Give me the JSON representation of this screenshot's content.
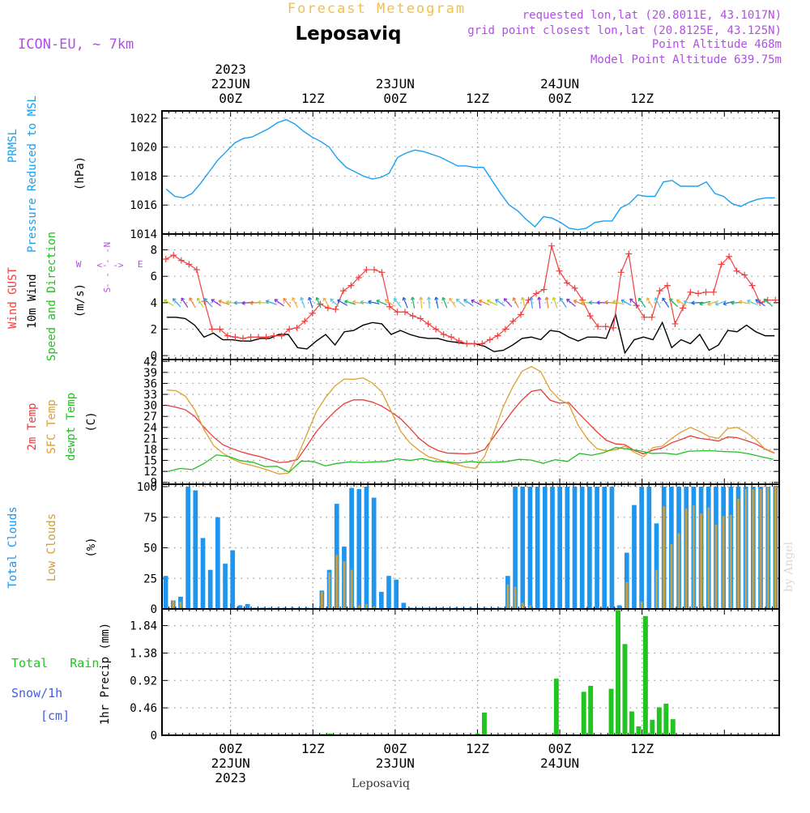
{
  "colors": {
    "pressure": "#1aa0f0",
    "gust": "#f04040",
    "wind": "#000000",
    "t2m": "#e83c3c",
    "sfc": "#dca030",
    "dew": "#22c022",
    "tcc": "#1e96f0",
    "lcc": "#c8a040",
    "rain": "#22c422",
    "snow": "#4060e0",
    "purple": "#b050e0",
    "orange": "#f0c050",
    "grid": "#999999"
  },
  "header": {
    "forecast_meteogram": "Forecast Meteogram",
    "model": "ICON-EU, ~ 7km",
    "location": "Leposaviq",
    "requested": "requested lon,lat (20.8011E, 43.1017N)",
    "gridpoint": "grid point closest lon,lat (20.8125E, 43.125N)",
    "point_alt": "Point Altitude 468m",
    "model_alt": "Model Point Altitude 639.75m"
  },
  "footer": {
    "location": "Leposaviq",
    "credit": "by Angel"
  },
  "chart_data": [
    {
      "id": "time_axis",
      "type": "axis",
      "x_hours_from_21jun_14z": [
        0,
        90
      ],
      "top_labels": [
        {
          "t": 10,
          "lines": [
            "2023",
            "22JUN",
            "00Z"
          ]
        },
        {
          "t": 22,
          "lines": [
            "12Z"
          ]
        },
        {
          "t": 34,
          "lines": [
            "23JUN",
            "00Z"
          ]
        },
        {
          "t": 46,
          "lines": [
            "12Z"
          ]
        },
        {
          "t": 58,
          "lines": [
            "24JUN",
            "00Z"
          ]
        },
        {
          "t": 70,
          "lines": [
            "12Z"
          ]
        }
      ],
      "bottom_labels": [
        {
          "t": 10,
          "lines": [
            "00Z",
            "22JUN",
            "2023"
          ]
        },
        {
          "t": 22,
          "lines": [
            "12Z"
          ]
        },
        {
          "t": 34,
          "lines": [
            "00Z",
            "23JUN"
          ]
        },
        {
          "t": 46,
          "lines": [
            "12Z"
          ]
        },
        {
          "t": 58,
          "lines": [
            "00Z",
            "24JUN"
          ]
        },
        {
          "t": 70,
          "lines": [
            "12Z"
          ]
        }
      ]
    },
    {
      "id": "pressure",
      "type": "line",
      "ylim": [
        1014,
        1022.5
      ],
      "yticks": [
        1014,
        1016,
        1018,
        1020,
        1022
      ],
      "ylabel_lines": [
        "PRMSL",
        "Pressure Reduced to MSL"
      ],
      "unit": "(hPa)",
      "series": [
        {
          "name": "PRMSL",
          "color": "pressure",
          "values": [
            1017.1,
            1016.6,
            1016.5,
            1016.8,
            1017.5,
            1018.3,
            1019.1,
            1019.7,
            1020.3,
            1020.6,
            1020.7,
            1021.0,
            1021.3,
            1021.7,
            1021.9,
            1021.6,
            1021.1,
            1020.7,
            1020.4,
            1020.0,
            1019.2,
            1018.6,
            1018.3,
            1018.0,
            1017.8,
            1017.9,
            1018.2,
            1019.3,
            1019.6,
            1019.8,
            1019.7,
            1019.5,
            1019.3,
            1019.0,
            1018.7,
            1018.7,
            1018.6,
            1018.6,
            1017.7,
            1016.8,
            1016.0,
            1015.6,
            1015.0,
            1014.5,
            1015.2,
            1015.1,
            1014.8,
            1014.4,
            1014.3,
            1014.4,
            1014.8,
            1014.9,
            1014.9,
            1015.8,
            1016.1,
            1016.7,
            1016.6,
            1016.6,
            1017.6,
            1017.7,
            1017.3,
            1017.3,
            1017.3,
            1017.6,
            1016.8,
            1016.6,
            1016.1,
            1015.9,
            1016.2,
            1016.4,
            1016.5,
            1016.5
          ]
        }
      ]
    },
    {
      "id": "wind",
      "type": "line",
      "ylim": [
        -0.3,
        9.2
      ],
      "yticks": [
        0,
        2,
        4,
        6,
        8
      ],
      "ylabel_lines": [
        "Wind GUST",
        "10m Wind",
        "Speed and Direction"
      ],
      "unit": "(m/s)",
      "compass": {
        "n": "N",
        "s": "S",
        "w": "W",
        "e": "E"
      },
      "arrow_level": 4,
      "series": [
        {
          "name": "Wind GUST",
          "color": "gust",
          "marker": "+",
          "values": [
            7.3,
            7.6,
            7.2,
            6.9,
            6.5,
            4.1,
            2.0,
            2.0,
            1.5,
            1.4,
            1.3,
            1.4,
            1.4,
            1.4,
            1.5,
            1.5,
            2.0,
            2.1,
            2.6,
            3.2,
            3.9,
            3.6,
            3.5,
            4.9,
            5.3,
            5.9,
            6.5,
            6.5,
            6.3,
            3.7,
            3.3,
            3.3,
            3.0,
            2.8,
            2.4,
            2.0,
            1.6,
            1.4,
            1.1,
            0.9,
            0.9,
            0.9,
            1.2,
            1.5,
            2.0,
            2.6,
            3.1,
            4.2,
            4.7,
            5.0,
            8.3,
            6.4,
            5.5,
            5.1,
            4.2,
            3.0,
            2.2,
            2.2,
            2.1,
            6.3,
            7.7,
            3.8,
            2.9,
            2.9,
            4.9,
            5.3,
            2.4,
            3.6,
            4.8,
            4.7,
            4.8,
            4.8,
            6.9,
            7.5,
            6.4,
            6.1,
            5.3,
            4.0,
            4.2,
            4.2
          ]
        },
        {
          "name": "10m Wind",
          "color": "wind",
          "values": [
            2.9,
            2.9,
            2.8,
            2.3,
            1.4,
            1.7,
            1.2,
            1.2,
            1.1,
            1.1,
            1.3,
            1.3,
            1.6,
            1.6,
            0.6,
            0.5,
            1.1,
            1.6,
            0.8,
            1.8,
            1.9,
            2.3,
            2.5,
            2.4,
            1.6,
            1.9,
            1.6,
            1.4,
            1.3,
            1.3,
            1.1,
            1.0,
            0.9,
            0.9,
            0.7,
            0.3,
            0.4,
            0.8,
            1.3,
            1.4,
            1.2,
            1.9,
            1.8,
            1.4,
            1.1,
            1.4,
            1.4,
            1.3,
            3.1,
            0.2,
            1.2,
            1.4,
            1.2,
            2.5,
            0.6,
            1.2,
            0.9,
            1.6,
            0.4,
            0.8,
            1.9,
            1.8,
            2.3,
            1.8,
            1.5,
            1.5
          ]
        }
      ]
    },
    {
      "id": "temperature",
      "type": "line",
      "ylim": [
        8.5,
        42.5
      ],
      "yticks": [
        9,
        12,
        15,
        18,
        21,
        24,
        27,
        30,
        33,
        36,
        39,
        42
      ],
      "ylabel_lines": [
        "2m Temp",
        "SFC Temp",
        "dewpt Temp"
      ],
      "unit": "(C)",
      "series": [
        {
          "name": "2m Temp",
          "color": "t2m",
          "values": [
            30.0,
            29.5,
            28.8,
            27.0,
            24.0,
            21.4,
            19.3,
            18.2,
            17.3,
            16.6,
            16.0,
            15.2,
            14.4,
            14.6,
            15.3,
            19.0,
            22.8,
            25.8,
            28.4,
            30.5,
            31.5,
            31.5,
            30.9,
            29.8,
            28.2,
            26.4,
            23.8,
            21.0,
            19.0,
            17.7,
            17.0,
            16.9,
            16.8,
            17.0,
            18.0,
            21.5,
            25.0,
            28.5,
            31.5,
            33.8,
            34.3,
            31.4,
            30.6,
            30.8,
            28.0,
            25.4,
            22.8,
            20.5,
            19.5,
            19.3,
            17.7,
            16.8,
            17.8,
            18.4,
            19.8,
            20.7,
            21.7,
            21.0,
            20.7,
            20.3,
            21.4,
            21.2,
            20.4,
            19.5,
            18.1,
            17.0
          ]
        },
        {
          "name": "SFC Temp",
          "color": "sfc",
          "values": [
            34.2,
            34.0,
            32.5,
            28.8,
            23.4,
            19.1,
            17.0,
            15.4,
            14.3,
            13.7,
            13.0,
            12.2,
            11.3,
            11.5,
            16.2,
            22.2,
            28.3,
            32.2,
            35.3,
            37.2,
            37.1,
            37.5,
            36.1,
            33.7,
            28.4,
            23.0,
            19.8,
            17.7,
            16.0,
            15.3,
            14.4,
            13.9,
            13.2,
            12.8,
            16.1,
            22.8,
            29.7,
            35.0,
            39.3,
            40.6,
            39.2,
            34.3,
            31.6,
            30.3,
            24.6,
            20.8,
            18.2,
            17.6,
            17.9,
            18.9,
            17.2,
            16.0,
            18.5,
            18.9,
            21.0,
            22.7,
            24.0,
            22.9,
            21.5,
            21.0,
            23.7,
            24.0,
            22.6,
            20.7,
            18.0,
            16.9
          ]
        },
        {
          "name": "dewpt Temp",
          "color": "dew",
          "values": [
            12.0,
            12.8,
            12.5,
            14.2,
            16.5,
            16.1,
            14.9,
            14.5,
            13.3,
            13.4,
            11.8,
            14.8,
            14.7,
            13.5,
            14.2,
            14.6,
            14.4,
            14.6,
            14.7,
            15.4,
            15.0,
            15.5,
            14.7,
            14.6,
            14.3,
            14.7,
            14.4,
            14.5,
            14.7,
            15.3,
            15.1,
            14.2,
            15.2,
            14.7,
            16.9,
            16.4,
            17.1,
            18.5,
            18.1,
            17.6,
            16.9,
            17.0,
            16.6,
            17.5,
            17.6,
            17.6,
            17.4,
            17.3,
            16.8,
            16.0,
            15.3
          ]
        }
      ]
    },
    {
      "id": "clouds",
      "type": "bar",
      "ylim": [
        0,
        102
      ],
      "yticks": [
        0,
        25,
        50,
        75,
        100
      ],
      "ylabel_lines": [
        "Total Clouds",
        "Low Clouds"
      ],
      "unit": "(%)",
      "t0": 0,
      "series": [
        {
          "name": "Total Clouds",
          "color": "tcc",
          "values": [
            27,
            7,
            10,
            100,
            97,
            58,
            32,
            75,
            37,
            48,
            3,
            4,
            1,
            1,
            1,
            1,
            1,
            1,
            1,
            1,
            1,
            15,
            32,
            86,
            51,
            99,
            98,
            100,
            91,
            14,
            27,
            24,
            5,
            1,
            1,
            1,
            1,
            1,
            1,
            1,
            1,
            1,
            1,
            1,
            1,
            1,
            27,
            100,
            100,
            100,
            100,
            100,
            100,
            100,
            100,
            100,
            100,
            100,
            100,
            100,
            100,
            3,
            46,
            85,
            100,
            100,
            70,
            100,
            100,
            100,
            100,
            100,
            100,
            100,
            100,
            100,
            100,
            100,
            100,
            100,
            100,
            100,
            100
          ]
        },
        {
          "name": "Low Clouds",
          "color": "lcc",
          "values": [
            0,
            7,
            6,
            0,
            0,
            0,
            0,
            0,
            0,
            0,
            0,
            0,
            0,
            0,
            0,
            0,
            0,
            0,
            0,
            0,
            0,
            14,
            30,
            44,
            39,
            32,
            3,
            4,
            2,
            0,
            0,
            0,
            0,
            0,
            0,
            0,
            0,
            0,
            0,
            0,
            0,
            0,
            0,
            0,
            0,
            0,
            20,
            18,
            5,
            3,
            0,
            0,
            0,
            0,
            0,
            0,
            0,
            0,
            0,
            0,
            0,
            0,
            22,
            0,
            6,
            0,
            32,
            84,
            53,
            62,
            82,
            85,
            78,
            83,
            69,
            76,
            77,
            90,
            98,
            98,
            98,
            100,
            100
          ]
        }
      ]
    },
    {
      "id": "precip",
      "type": "bar",
      "ylim": [
        0,
        2.12
      ],
      "yticks": [
        0,
        0.46,
        0.92,
        1.38,
        1.84
      ],
      "ylabel_lines": [
        "1hr Precip (mm)"
      ],
      "left_labels": [
        "Total   Rain",
        "Snow/1h",
        "[cm]"
      ],
      "series": [
        {
          "name": "1hr Precip",
          "color": "rain",
          "bars": [
            {
              "t": 23.5,
              "v": 0.02
            },
            {
              "t": 24.5,
              "v": 0.03
            },
            {
              "t": 46.0,
              "v": 0.03
            },
            {
              "t": 47.0,
              "v": 0.38
            },
            {
              "t": 57.5,
              "v": 0.95
            },
            {
              "t": 61.5,
              "v": 0.73
            },
            {
              "t": 62.5,
              "v": 0.83
            },
            {
              "t": 65.5,
              "v": 0.78
            },
            {
              "t": 66.5,
              "v": 2.1
            },
            {
              "t": 67.5,
              "v": 1.53
            },
            {
              "t": 68.5,
              "v": 0.4
            },
            {
              "t": 69.5,
              "v": 0.15
            },
            {
              "t": 70.5,
              "v": 2.0
            },
            {
              "t": 71.5,
              "v": 0.26
            },
            {
              "t": 72.5,
              "v": 0.47
            },
            {
              "t": 73.5,
              "v": 0.53
            },
            {
              "t": 74.5,
              "v": 0.27
            }
          ]
        }
      ]
    }
  ]
}
